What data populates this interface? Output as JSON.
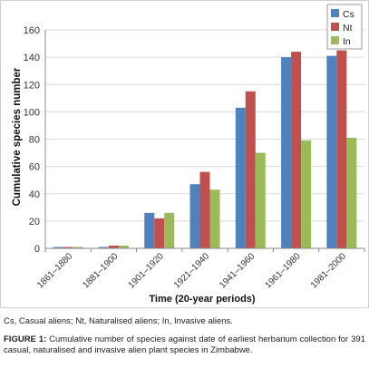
{
  "chart_data": {
    "type": "bar",
    "xlabel": "Time (20-year periods)",
    "ylabel": "Cumulative species number",
    "ylim": [
      0,
      160
    ],
    "yticks": [
      0,
      20,
      40,
      60,
      80,
      100,
      120,
      140,
      160
    ],
    "grid": true,
    "legend_position": "top-right",
    "categories": [
      "1861–1880",
      "1881–1900",
      "1901–1920",
      "1921–1940",
      "1941–1960",
      "1961–1980",
      "1981–2000"
    ],
    "series": [
      {
        "name": "Cs",
        "color": "#4f81bd",
        "values": [
          1,
          1,
          26,
          47,
          103,
          140,
          141
        ]
      },
      {
        "name": "Nt",
        "color": "#c0504d",
        "values": [
          1,
          2,
          22,
          56,
          115,
          144,
          145
        ]
      },
      {
        "name": "In",
        "color": "#9bbb59",
        "values": [
          1,
          2,
          26,
          43,
          70,
          79,
          81
        ]
      }
    ]
  },
  "caption": {
    "note": "Cs, Casual aliens; Nt, Naturalised aliens; In, Invasive aliens.",
    "figure_label": "FIGURE 1:",
    "figure_text": " Cumulative number of species against date of earliest herbarium collection for 391 casual, naturalised and invasive alien plant species in Zimbabwe."
  }
}
